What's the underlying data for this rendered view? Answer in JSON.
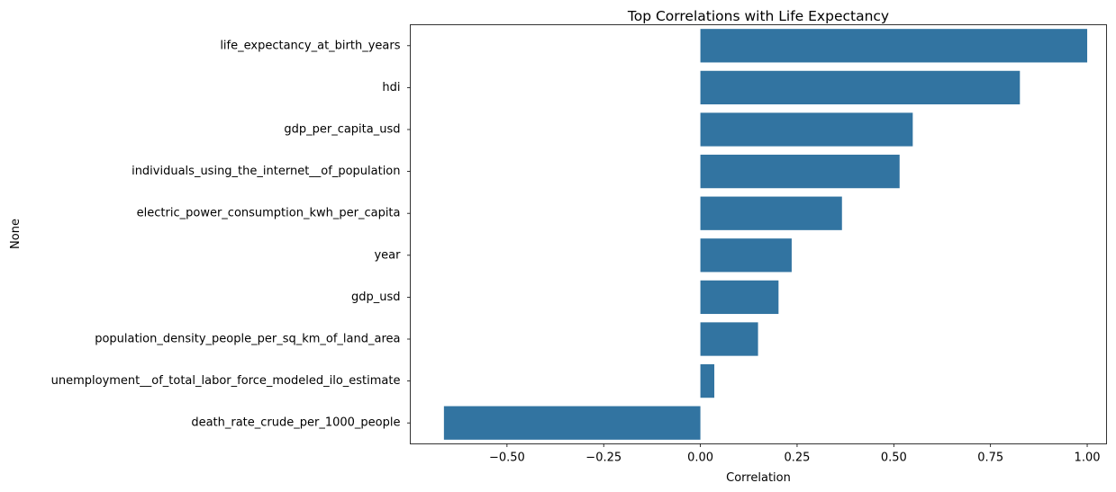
{
  "chart_data": {
    "type": "bar",
    "orientation": "horizontal",
    "title": "Top Correlations with Life Expectancy",
    "xlabel": "Correlation",
    "ylabel": "None",
    "xlim": [
      -0.75,
      1.05
    ],
    "xticks": [
      -0.5,
      -0.25,
      0.0,
      0.25,
      0.5,
      0.75,
      1.0
    ],
    "xtick_labels": [
      "−0.50",
      "−0.25",
      "0.00",
      "0.25",
      "0.50",
      "0.75",
      "1.00"
    ],
    "bar_color": "#3274a1",
    "grid": false,
    "categories": [
      "life_expectancy_at_birth_years",
      "hdi",
      "gdp_per_capita_usd",
      "individuals_using_the_internet__of_population",
      "electric_power_consumption_kwh_per_capita",
      "year",
      "gdp_usd",
      "population_density_people_per_sq_km_of_land_area",
      "unemployment__of_total_labor_force_modeled_ilo_estimate",
      "death_rate_crude_per_1000_people"
    ],
    "values": [
      1.0,
      0.826,
      0.549,
      0.515,
      0.366,
      0.236,
      0.202,
      0.149,
      0.036,
      -0.663
    ]
  }
}
